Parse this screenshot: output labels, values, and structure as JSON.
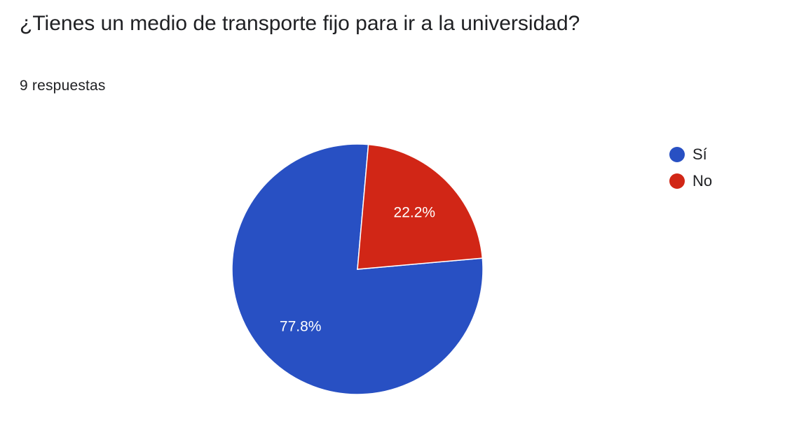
{
  "question": {
    "title": "¿Tienes un medio de transporte fijo para ir a la universidad?",
    "response_count": "9 respuestas"
  },
  "chart_data": {
    "type": "pie",
    "categories": [
      "Sí",
      "No"
    ],
    "values": [
      77.8,
      22.2
    ],
    "data_labels": [
      "77.8%",
      "22.2%"
    ],
    "colors": [
      "#2850c3",
      "#d12616"
    ],
    "legend_position": "right"
  }
}
